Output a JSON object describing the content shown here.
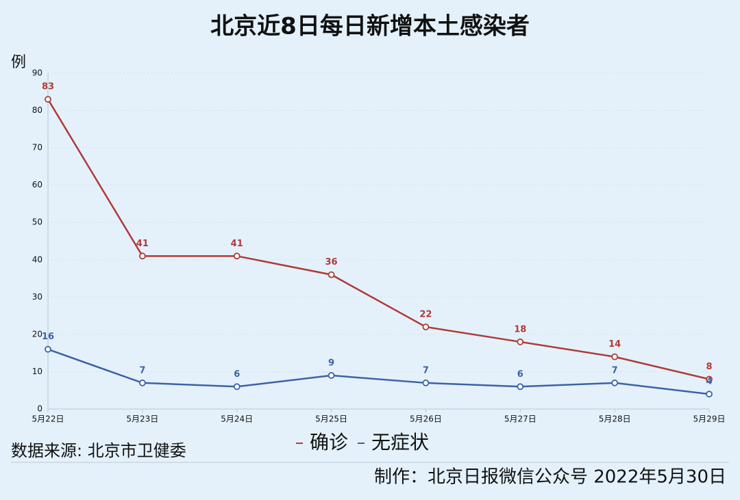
{
  "chart_data": {
    "type": "line",
    "title": "北京近8日每日新增本土感染者",
    "ylabel": "例",
    "categories": [
      "5月22日",
      "5月23日",
      "5月24日",
      "5月25日",
      "5月26日",
      "5月27日",
      "5月28日",
      "5月29日"
    ],
    "series": [
      {
        "name": "确诊",
        "color": "#b03a36",
        "values": [
          83,
          41,
          41,
          36,
          22,
          18,
          14,
          8
        ]
      },
      {
        "name": "无症状",
        "color": "#3b62a6",
        "values": [
          16,
          7,
          6,
          9,
          7,
          6,
          7,
          4
        ]
      }
    ],
    "ylim": [
      0,
      90
    ],
    "yticks": [
      0,
      10,
      20,
      30,
      40,
      50,
      60,
      70,
      80,
      90
    ],
    "grid": true,
    "source": "数据来源: 北京市卫健委",
    "credit": "制作：北京日报微信公众号 2022年5月30日"
  }
}
